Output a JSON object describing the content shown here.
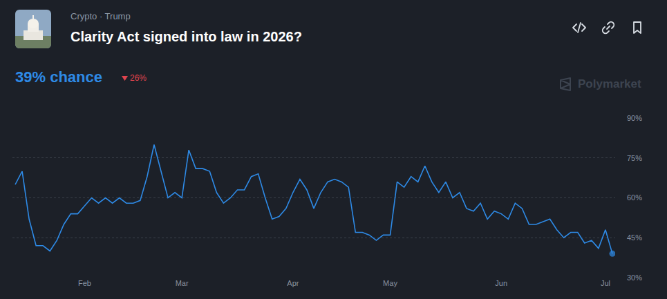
{
  "header": {
    "categories": "Crypto · Trump",
    "title": "Clarity Act signed into law in 2026?",
    "probability": "39% chance",
    "change": "26%",
    "watermark": "Polymarket"
  },
  "chart_data": {
    "type": "line",
    "color": "#2e8ae6",
    "grid": true,
    "categories": [
      null,
      null,
      null,
      null,
      null,
      null,
      null,
      null,
      null,
      null,
      "Feb",
      null,
      null,
      null,
      null,
      null,
      null,
      null,
      null,
      null,
      null,
      null,
      null,
      null,
      "Mar",
      null,
      null,
      null,
      null,
      null,
      null,
      null,
      null,
      null,
      null,
      null,
      null,
      null,
      null,
      null,
      "Apr",
      null,
      null,
      null,
      null,
      null,
      null,
      null,
      null,
      null,
      null,
      null,
      null,
      null,
      "May",
      null,
      null,
      null,
      null,
      null,
      null,
      null,
      null,
      null,
      null,
      null,
      null,
      null,
      null,
      null,
      "Jun",
      null,
      null,
      null,
      null,
      null,
      null,
      null,
      null,
      null,
      null,
      null,
      null,
      null,
      null,
      "Jul",
      null
    ],
    "values": [
      65,
      70,
      52,
      42,
      42,
      40,
      44,
      50,
      54,
      54,
      57,
      60,
      58,
      60,
      58,
      60,
      58,
      58,
      59,
      68,
      80,
      70,
      60,
      62,
      60,
      78,
      71,
      71,
      70,
      62,
      58,
      60,
      63,
      63,
      68,
      69,
      60,
      52,
      53,
      56,
      62,
      67,
      63,
      56,
      62,
      66,
      67,
      66,
      64,
      47,
      47,
      46,
      44,
      46,
      46,
      66,
      64,
      68,
      66,
      72,
      66,
      62,
      66,
      60,
      62,
      56,
      55,
      58,
      52,
      55,
      54,
      52,
      58,
      56,
      50,
      50,
      51,
      52,
      48,
      45,
      47,
      47,
      43,
      44,
      41,
      48,
      39
    ],
    "ylim": [
      30,
      90
    ],
    "yticks": [
      {
        "value": 30,
        "label": "30%"
      },
      {
        "value": 45,
        "label": "45%"
      },
      {
        "value": 60,
        "label": "60%"
      },
      {
        "value": 75,
        "label": "75%"
      },
      {
        "value": 90,
        "label": "90%"
      }
    ]
  }
}
